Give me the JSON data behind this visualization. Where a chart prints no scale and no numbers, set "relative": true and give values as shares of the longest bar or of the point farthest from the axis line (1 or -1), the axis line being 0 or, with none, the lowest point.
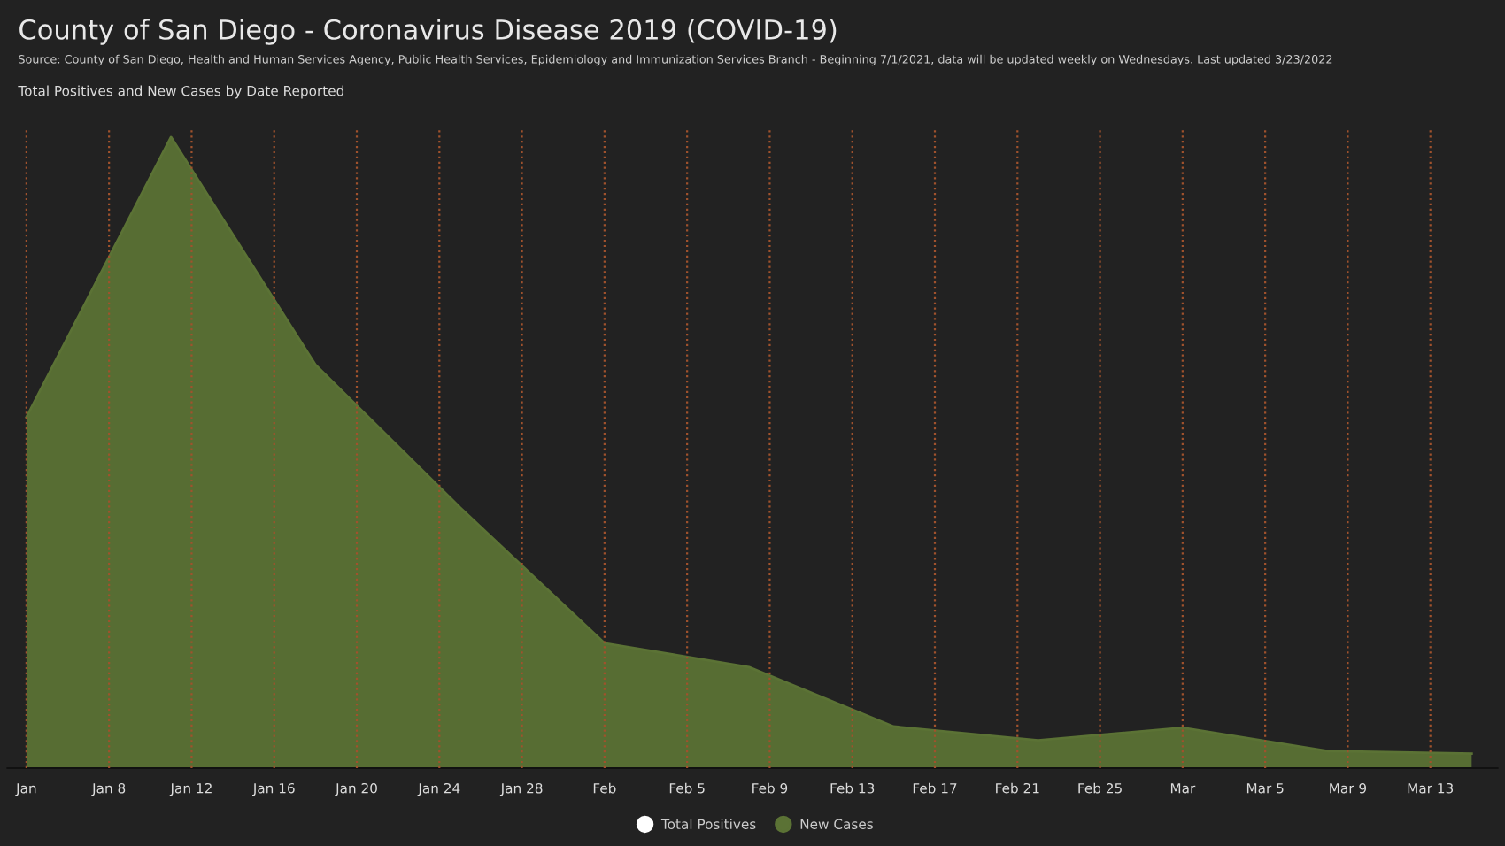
{
  "chart_data": {
    "type": "area",
    "title": "County of San Diego - Coronavirus Disease 2019 (COVID-19)",
    "subtitle": "Source: County of San Diego, Health and Human Services Agency, Public Health Services, Epidemiology and Immunization Services Branch - Beginning 7/1/2021, data will be updated weekly on Wednesdays. Last updated 3/23/2022",
    "annotations": [
      "Total Positives and New Cases by Date Reported"
    ],
    "relative": true,
    "x": [
      "2022-01-04",
      "2022-01-11",
      "2022-01-18",
      "2022-01-25",
      "2022-02-01",
      "2022-02-08",
      "2022-02-15",
      "2022-02-22",
      "2022-03-01",
      "2022-03-08",
      "2022-03-15"
    ],
    "series": [
      {
        "name": "Total Positives",
        "color": "#ffffff",
        "values": [
          null,
          null,
          null,
          null,
          null,
          null,
          null,
          null,
          null,
          null,
          null
        ]
      },
      {
        "name": "New Cases",
        "color": "#5b7235",
        "values": [
          0.556,
          1,
          0.639,
          0.413,
          0.198,
          0.16,
          0.066,
          0.044,
          0.064,
          0.027,
          0.023
        ]
      }
    ],
    "xlim": [
      "2022-01-03T02:00",
      "2022-03-16T06:00"
    ],
    "xticks": [
      {
        "value": "2022-01-04",
        "label": "Jan"
      },
      {
        "value": "2022-01-08",
        "label": "Jan 8"
      },
      {
        "value": "2022-01-12",
        "label": "Jan 12"
      },
      {
        "value": "2022-01-16",
        "label": "Jan 16"
      },
      {
        "value": "2022-01-20",
        "label": "Jan 20"
      },
      {
        "value": "2022-01-24",
        "label": "Jan 24"
      },
      {
        "value": "2022-01-28",
        "label": "Jan 28"
      },
      {
        "value": "2022-02-01",
        "label": "Feb"
      },
      {
        "value": "2022-02-05",
        "label": "Feb 5"
      },
      {
        "value": "2022-02-09",
        "label": "Feb 9"
      },
      {
        "value": "2022-02-13",
        "label": "Feb 13"
      },
      {
        "value": "2022-02-17",
        "label": "Feb 17"
      },
      {
        "value": "2022-02-21",
        "label": "Feb 21"
      },
      {
        "value": "2022-02-25",
        "label": "Feb 25"
      },
      {
        "value": "2022-03-01",
        "label": "Mar"
      },
      {
        "value": "2022-03-05",
        "label": "Mar 5"
      },
      {
        "value": "2022-03-09",
        "label": "Mar 9"
      },
      {
        "value": "2022-03-13",
        "label": "Mar 13"
      }
    ],
    "grid": "x",
    "legend": "bottom",
    "marker": "none"
  }
}
